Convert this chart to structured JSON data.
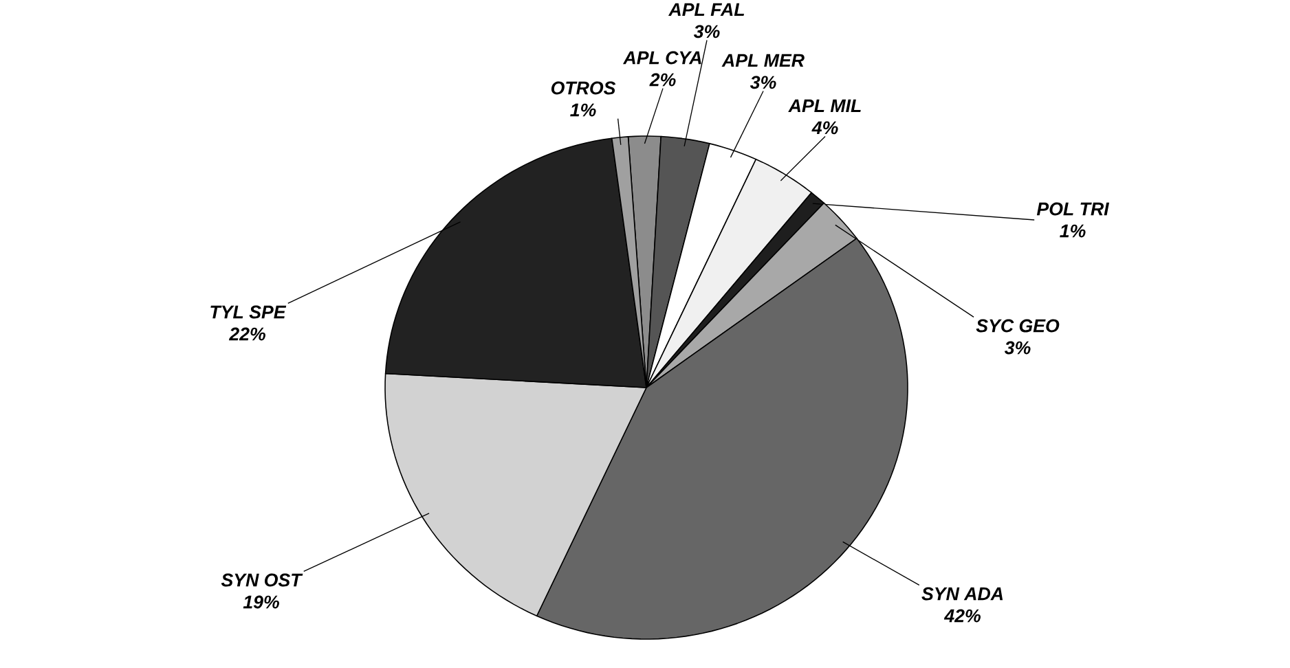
{
  "chart_data": {
    "type": "pie",
    "categories": [
      "APL CYA",
      "APL FAL",
      "APL MER",
      "APL MIL",
      "POL TRI",
      "SYC GEO",
      "SYN ADA",
      "SYN OST",
      "TYL SPE",
      "OTROS"
    ],
    "values": [
      2,
      3,
      3,
      4,
      1,
      3,
      42,
      19,
      22,
      1
    ],
    "value_labels": [
      "2%",
      "3%",
      "3%",
      "4%",
      "1%",
      "3%",
      "42%",
      "19%",
      "22%",
      "1%"
    ],
    "colors": [
      "#8c8c8c",
      "#555555",
      "#ffffff",
      "#f0f0f0",
      "#1e1e1e",
      "#a8a8a8",
      "#666666",
      "#d2d2d2",
      "#222222",
      "#a0a0a0"
    ]
  }
}
